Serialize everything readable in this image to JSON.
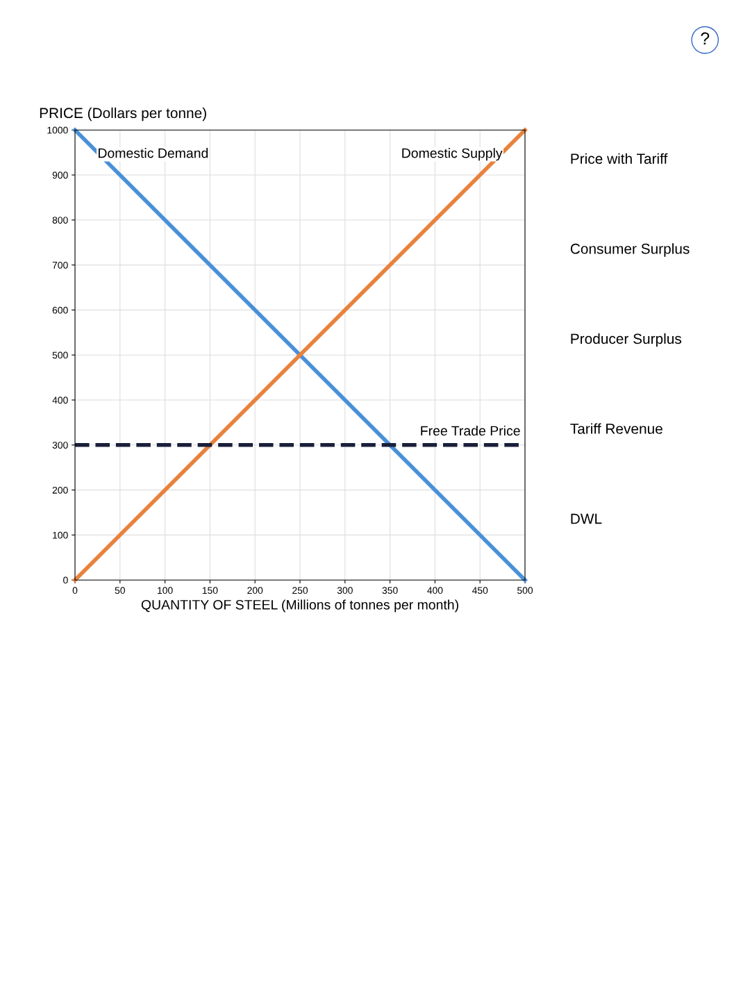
{
  "chart_data": {
    "type": "line",
    "xlabel": "QUANTITY OF STEEL (Millions of tonnes per month)",
    "ylabel": "PRICE (Dollars per tonne)",
    "xlim": [
      0,
      500
    ],
    "ylim": [
      0,
      1000
    ],
    "xticks": [
      0,
      50,
      100,
      150,
      200,
      250,
      300,
      350,
      400,
      450,
      500
    ],
    "yticks": [
      0,
      100,
      200,
      300,
      400,
      500,
      600,
      700,
      800,
      900,
      1000
    ],
    "grid": true,
    "marker": "none",
    "line_style": "solid",
    "x": [
      0,
      500
    ],
    "series": [
      {
        "name": "Domestic Demand",
        "color": "#4a90d9",
        "values": [
          1000,
          0
        ]
      },
      {
        "name": "Domestic Supply",
        "color": "#e8823c",
        "values": [
          0,
          1000
        ]
      }
    ],
    "ref_lines": [
      {
        "axis": "y",
        "value": 300,
        "label": "Free Trade Price",
        "color": "#1a1f3a",
        "line_style": "dashed"
      }
    ],
    "annotations": [
      "?",
      "Price with Tariff",
      "Consumer Surplus",
      "Producer Surplus",
      "Tariff Revenue",
      "DWL"
    ]
  }
}
